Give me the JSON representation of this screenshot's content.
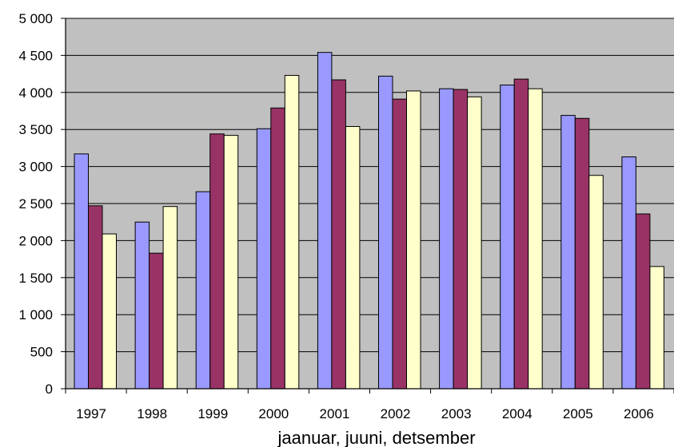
{
  "chart_data": {
    "type": "bar",
    "title": "",
    "xlabel": "jaanuar, juuni, detsember",
    "ylabel": "",
    "ylim": [
      0,
      5000
    ],
    "yticks": [
      0,
      500,
      1000,
      1500,
      2000,
      2500,
      3000,
      3500,
      4000,
      4500,
      5000
    ],
    "ytick_labels": [
      "0",
      "500",
      "1 000",
      "1 500",
      "2 000",
      "2 500",
      "3 000",
      "3 500",
      "4 000",
      "4 500",
      "5 000"
    ],
    "categories": [
      "1997",
      "1998",
      "1999",
      "2000",
      "2001",
      "2002",
      "2003",
      "2004",
      "2005",
      "2006"
    ],
    "grid": true,
    "legend": "none",
    "plot_background": "#c0c0c0",
    "series": [
      {
        "color": "#9999ff",
        "values": [
          3170,
          2250,
          2660,
          3510,
          4540,
          4220,
          4050,
          4100,
          3690,
          3130
        ]
      },
      {
        "color": "#993366",
        "values": [
          2470,
          1830,
          3440,
          3790,
          4170,
          3910,
          4040,
          4180,
          3650,
          2360
        ]
      },
      {
        "color": "#ffffcc",
        "values": [
          2090,
          2460,
          3420,
          4230,
          3540,
          4020,
          3940,
          4050,
          2880,
          1650
        ]
      }
    ]
  }
}
